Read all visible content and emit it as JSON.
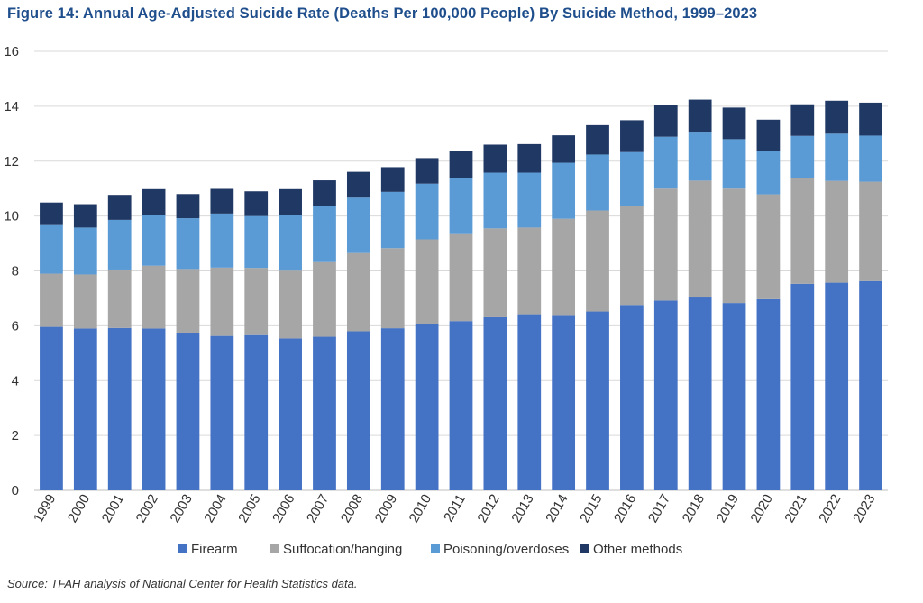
{
  "title": "Figure 14: Annual Age-Adjusted Suicide Rate (Deaths Per 100,000 People) By Suicide Method, 1999–2023",
  "source": "Source: TFAH analysis of National Center for Health Statistics data.",
  "chart_data": {
    "type": "bar",
    "stacked": true,
    "title": "Figure 14: Annual Age-Adjusted Suicide Rate (Deaths Per 100,000 People) By Suicide Method, 1999–2023",
    "xlabel": "",
    "ylabel": "",
    "ylim": [
      0,
      16
    ],
    "yticks": [
      0,
      2,
      4,
      6,
      8,
      10,
      12,
      14,
      16
    ],
    "grid": true,
    "legend_position": "bottom",
    "categories": [
      "1999",
      "2000",
      "2001",
      "2002",
      "2003",
      "2004",
      "2005",
      "2006",
      "2007",
      "2008",
      "2009",
      "2010",
      "2011",
      "2012",
      "2013",
      "2014",
      "2015",
      "2016",
      "2017",
      "2018",
      "2019",
      "2020",
      "2021",
      "2022",
      "2023"
    ],
    "series": [
      {
        "name": "Firearm",
        "color": "#4472c4",
        "values": [
          5.96,
          5.9,
          5.92,
          5.9,
          5.75,
          5.63,
          5.66,
          5.54,
          5.6,
          5.8,
          5.91,
          6.05,
          6.17,
          6.31,
          6.42,
          6.36,
          6.52,
          6.76,
          6.92,
          7.03,
          6.83,
          6.97,
          7.53,
          7.57,
          7.63
        ]
      },
      {
        "name": "Suffocation/hanging",
        "color": "#a6a6a6",
        "values": [
          1.94,
          1.97,
          2.13,
          2.29,
          2.32,
          2.49,
          2.45,
          2.47,
          2.72,
          2.85,
          2.92,
          3.1,
          3.17,
          3.24,
          3.16,
          3.54,
          3.68,
          3.61,
          4.08,
          4.26,
          4.17,
          3.82,
          3.84,
          3.71,
          3.62
        ]
      },
      {
        "name": "Poisoning/overdoses",
        "color": "#5b9bd5",
        "values": [
          1.77,
          1.71,
          1.81,
          1.86,
          1.85,
          1.97,
          1.89,
          2.01,
          2.03,
          2.02,
          2.05,
          2.03,
          2.05,
          2.03,
          2.0,
          2.04,
          2.04,
          1.96,
          1.89,
          1.75,
          1.8,
          1.58,
          1.55,
          1.72,
          1.68
        ]
      },
      {
        "name": "Other methods",
        "color": "#203864",
        "values": [
          0.82,
          0.85,
          0.91,
          0.93,
          0.88,
          0.9,
          0.9,
          0.96,
          0.95,
          0.94,
          0.9,
          0.93,
          0.99,
          1.02,
          1.04,
          1.0,
          1.07,
          1.16,
          1.15,
          1.2,
          1.15,
          1.14,
          1.15,
          1.2,
          1.2
        ]
      }
    ]
  }
}
